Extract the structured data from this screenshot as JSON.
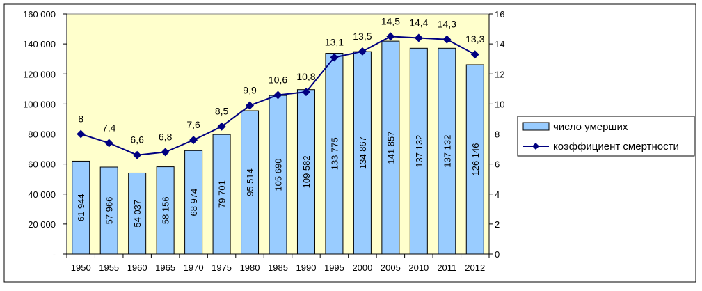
{
  "chart_data": {
    "type": "bar",
    "categories": [
      "1950",
      "1955",
      "1960",
      "1965",
      "1970",
      "1975",
      "1980",
      "1985",
      "1990",
      "1995",
      "2000",
      "2005",
      "2010",
      "2011",
      "2012"
    ],
    "series": [
      {
        "name": "число умерших",
        "type": "bar",
        "axis": "left",
        "values": [
          61944,
          57966,
          54037,
          58156,
          68974,
          79701,
          95514,
          105690,
          109582,
          133775,
          134867,
          141857,
          137132,
          137132,
          126146
        ],
        "labels": [
          "61 944",
          "57 966",
          "54 037",
          "58 156",
          "68 974",
          "79 701",
          "95 514",
          "105 690",
          "109 582",
          "133 775",
          "134 867",
          "141 857",
          "137 132",
          "137 132",
          "126 146"
        ],
        "color": "#99ccff"
      },
      {
        "name": "коэффициент смертности",
        "type": "line",
        "axis": "right",
        "values": [
          8,
          7.4,
          6.6,
          6.8,
          7.6,
          8.5,
          9.9,
          10.6,
          10.8,
          13.1,
          13.5,
          14.5,
          14.4,
          14.3,
          13.3
        ],
        "labels": [
          "8",
          "7,4",
          "6,6",
          "6,8",
          "7,6",
          "8,5",
          "9,9",
          "10,6",
          "10,8",
          "13,1",
          "13,5",
          "14,5",
          "14,4",
          "14,3",
          "13,3"
        ],
        "color": "#000080"
      }
    ],
    "ylim": [
      0,
      160000
    ],
    "y2lim": [
      0,
      16
    ],
    "y_ticks": [
      "-",
      "20 000",
      "40 000",
      "60 000",
      "80 000",
      "100 000",
      "120 000",
      "140 000",
      "160 000"
    ],
    "y2_ticks": [
      "0",
      "2",
      "4",
      "6",
      "8",
      "10",
      "12",
      "14",
      "16"
    ],
    "grid": false,
    "legend_position": "right",
    "plot_background": "#ffffcc"
  }
}
